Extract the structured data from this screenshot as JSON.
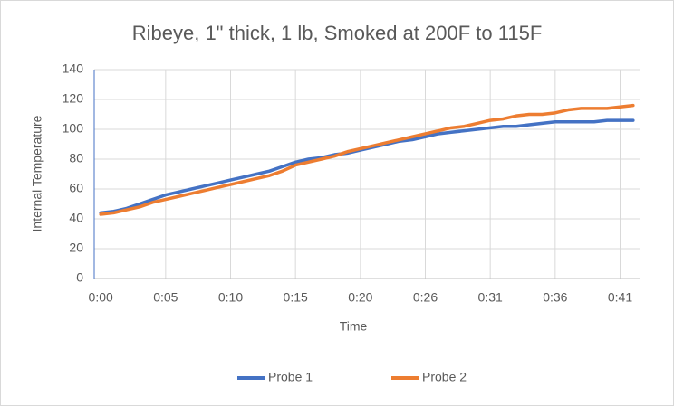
{
  "chart_data": {
    "type": "line",
    "title": "Ribeye, 1\" thick, 1 lb, Smoked at 200F to 115F",
    "x_label": "Time",
    "y_label": "Internal Temperature",
    "categories": [
      "0:00",
      null,
      null,
      null,
      null,
      "0:05",
      null,
      null,
      null,
      null,
      "0:10",
      null,
      null,
      null,
      null,
      "0:15",
      null,
      null,
      null,
      null,
      "0:20",
      null,
      null,
      null,
      null,
      "0:26",
      null,
      null,
      null,
      null,
      "0:31",
      null,
      null,
      null,
      null,
      "0:36",
      null,
      null,
      null,
      null,
      "0:41",
      null
    ],
    "series": [
      {
        "name": "Probe 1",
        "color": "#4472c4",
        "values": [
          44,
          45,
          47,
          50,
          53,
          56,
          58,
          60,
          62,
          64,
          66,
          68,
          70,
          72,
          75,
          78,
          80,
          81,
          83,
          84,
          86,
          88,
          90,
          92,
          93,
          95,
          97,
          98,
          99,
          100,
          101,
          102,
          102,
          103,
          104,
          105,
          105,
          105,
          105,
          106,
          106,
          106
        ]
      },
      {
        "name": "Probe 2",
        "color": "#ed7d31",
        "values": [
          43,
          44,
          46,
          48,
          51,
          53,
          55,
          57,
          59,
          61,
          63,
          65,
          67,
          69,
          72,
          76,
          78,
          80,
          82,
          85,
          87,
          89,
          91,
          93,
          95,
          97,
          99,
          101,
          102,
          104,
          106,
          107,
          109,
          110,
          110,
          111,
          113,
          114,
          114,
          114,
          115,
          116
        ]
      }
    ],
    "ylim": [
      0,
      140
    ],
    "yticks": [
      0,
      20,
      40,
      60,
      80,
      100,
      120,
      140
    ],
    "grid": true,
    "legend": "bottom"
  }
}
